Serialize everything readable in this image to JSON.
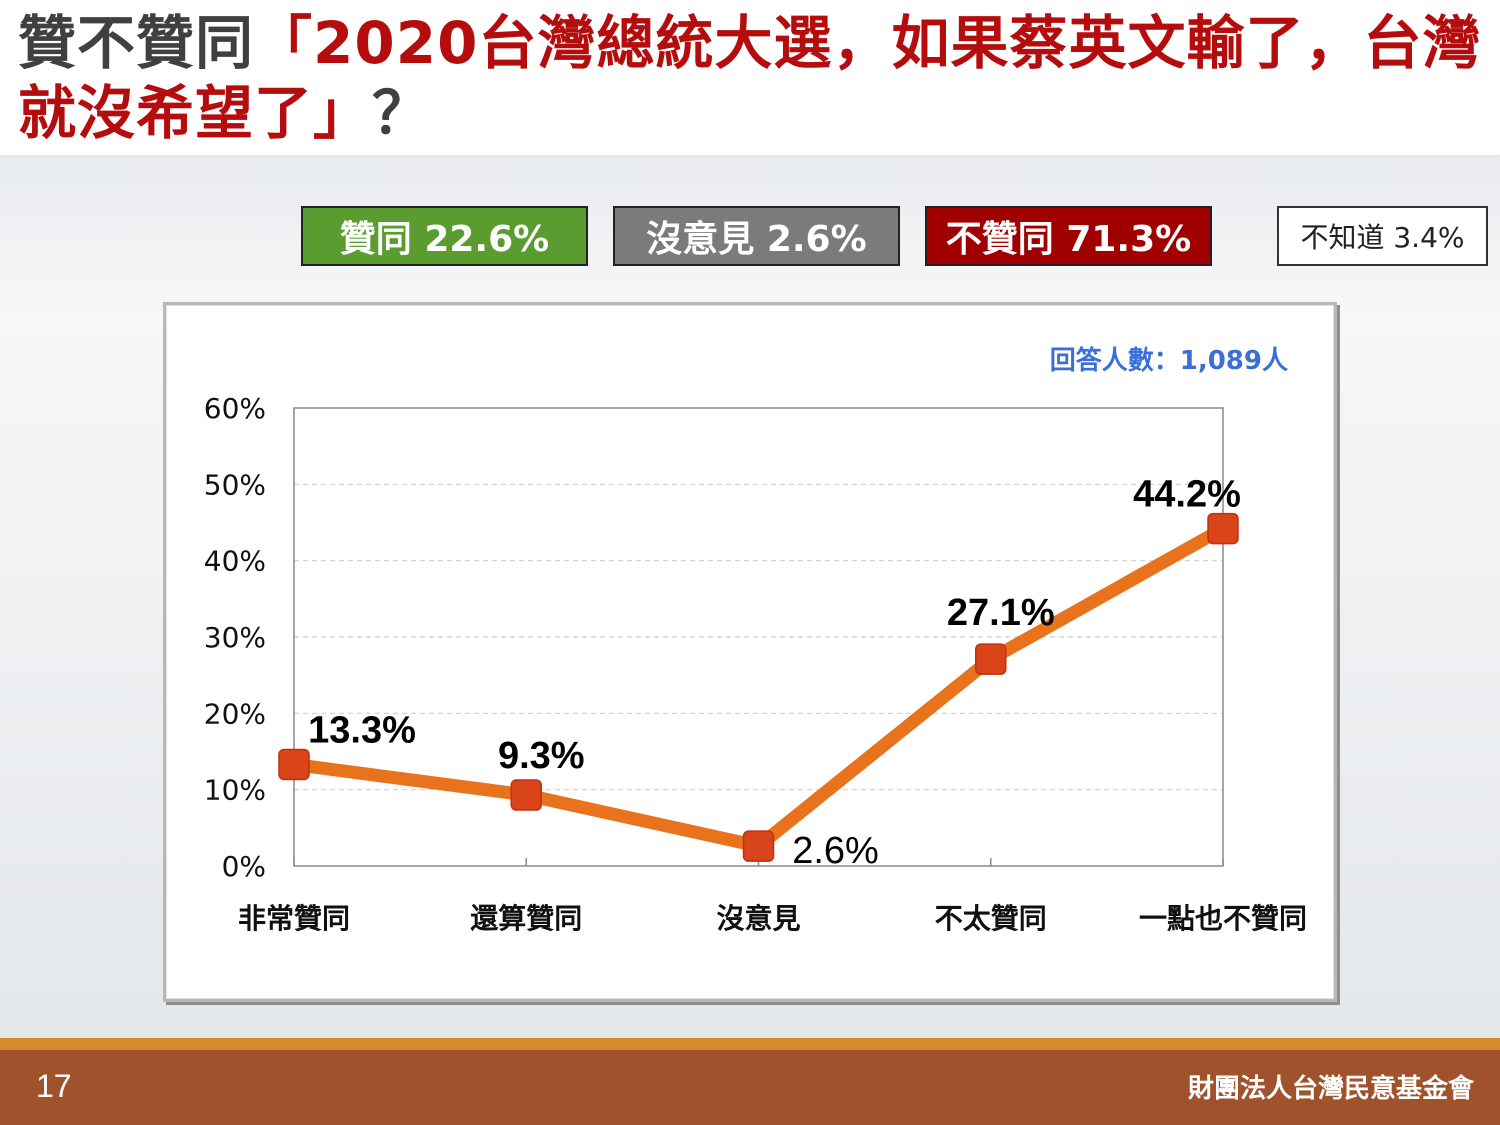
{
  "title": {
    "prefix": "贊不贊同",
    "highlight": "「2020台灣總統大選，如果蔡英文輸了，台灣就沒希望了」",
    "suffix": "？"
  },
  "summary": {
    "agree": "贊同 22.6%",
    "neutral": "沒意見 2.6%",
    "disagree": "不贊同 71.3%",
    "dont_know": "不知道 3.4%"
  },
  "colors": {
    "agree": "#5a9c2f",
    "neutral": "#7b7b7b",
    "disagree": "#a00000",
    "line": "#e8731c",
    "marker": "#d9441a",
    "title_red": "#b50d0d",
    "respondents": "#3b6fd8"
  },
  "footer": {
    "page_number": "17",
    "organization": "財團法人台灣民意基金會"
  },
  "chart_data": {
    "type": "line",
    "respondents_label": "回答人數：1,089人",
    "categories": [
      "非常贊同",
      "還算贊同",
      "沒意見",
      "不太贊同",
      "一點也不贊同"
    ],
    "values": [
      13.3,
      9.3,
      2.6,
      27.1,
      44.2
    ],
    "data_labels": [
      "13.3%",
      "9.3%",
      "2.6%",
      "27.1%",
      "44.2%"
    ],
    "y_ticks": [
      "0%",
      "10%",
      "20%",
      "30%",
      "40%",
      "50%",
      "60%"
    ],
    "ylim": [
      0,
      60
    ],
    "grid": true,
    "legend": "none"
  }
}
